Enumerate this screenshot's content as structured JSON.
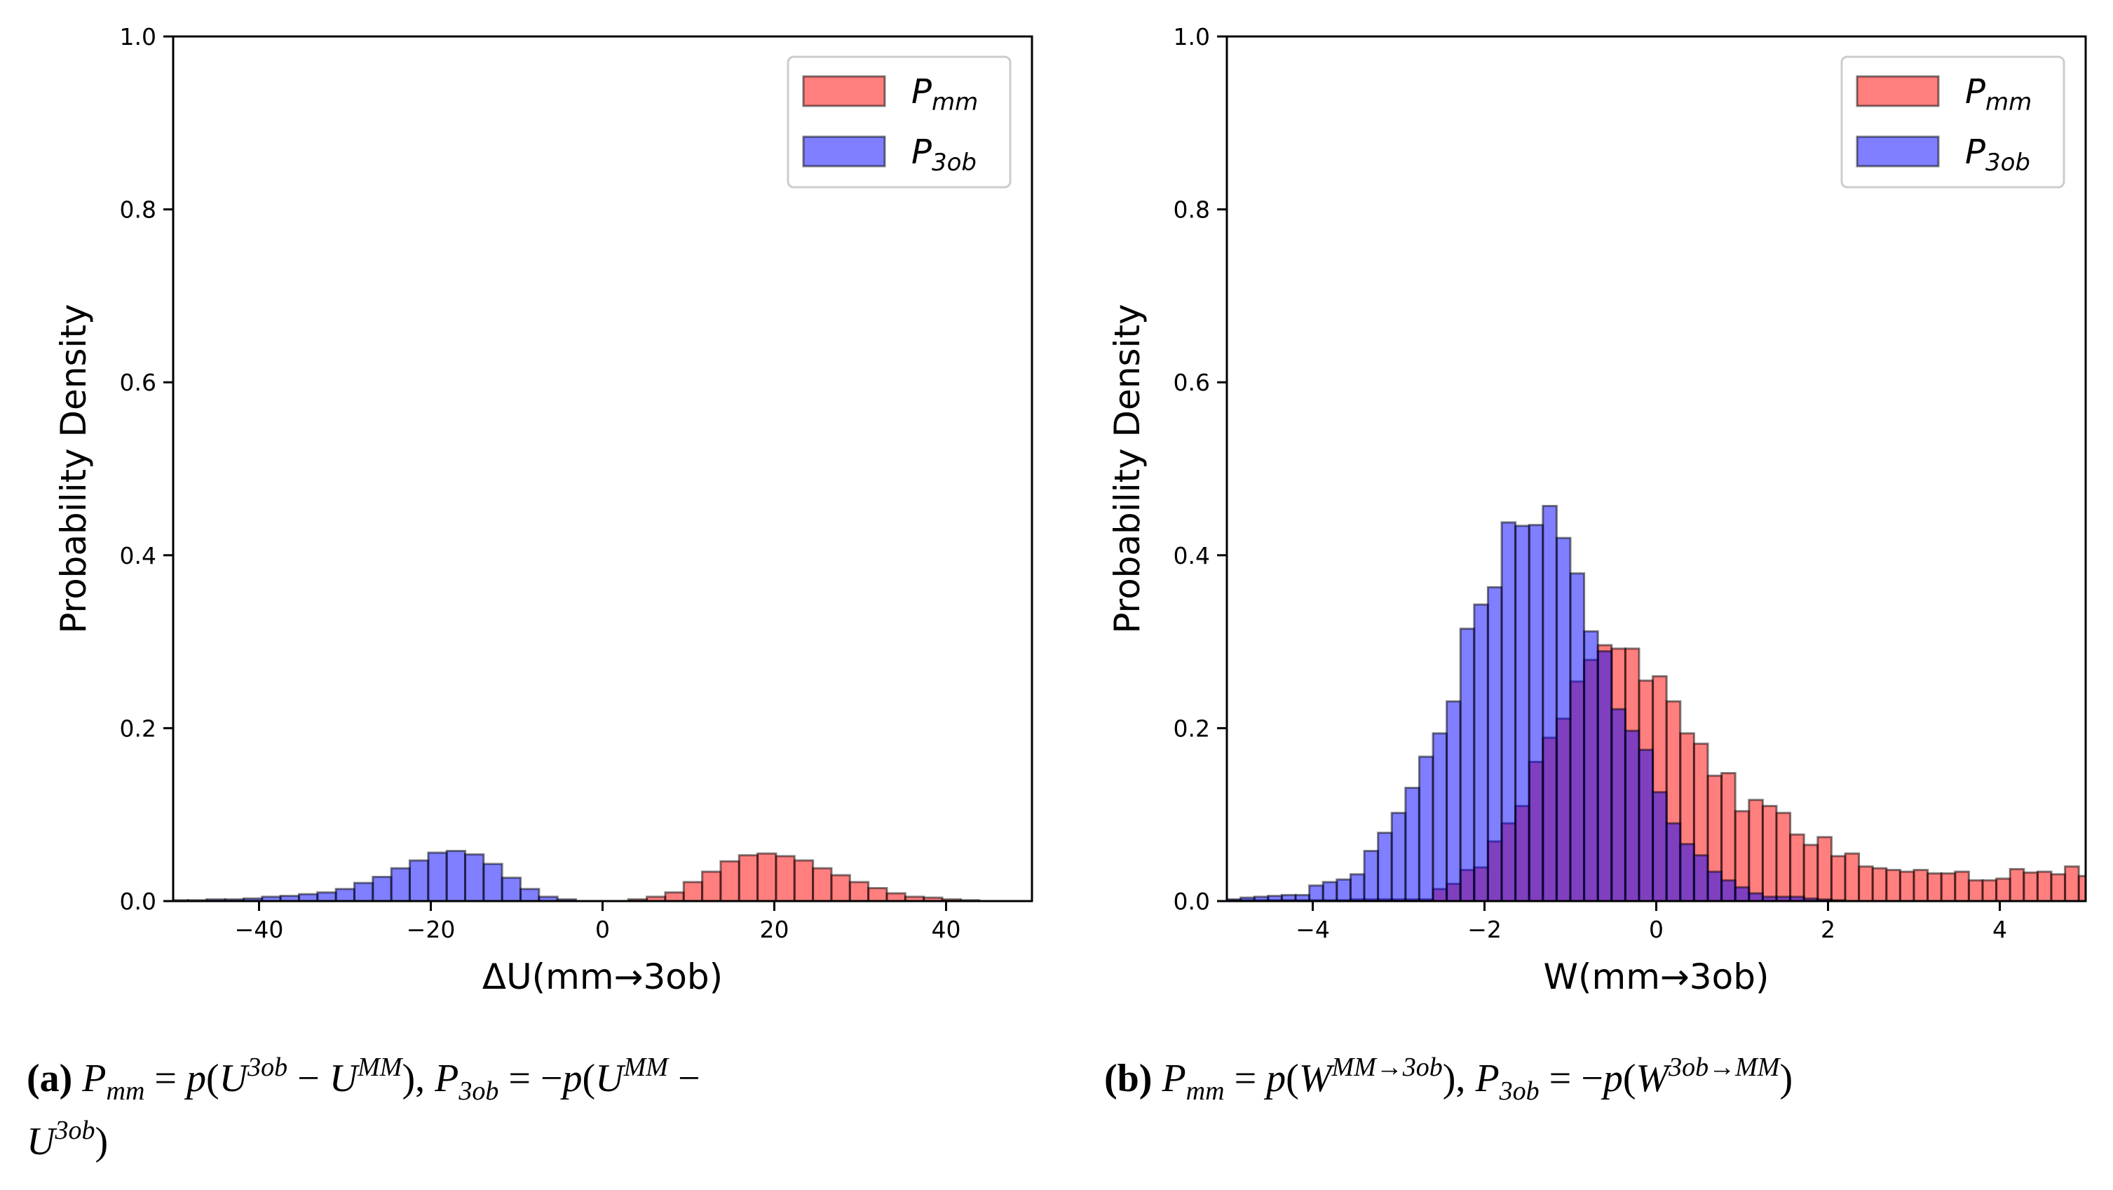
{
  "colors": {
    "pmm": "#ff0000",
    "p3ob": "#0000ff",
    "edge": "#000000"
  },
  "chart_data": [
    {
      "type": "histogram",
      "ylabel": "Probability Density",
      "xlabel": "ΔU(mm→3ob)",
      "xlim": [
        -50,
        50
      ],
      "ylim": [
        0,
        1.0
      ],
      "xticks": [
        "−40",
        "−20",
        "0",
        "20",
        "40"
      ],
      "xtick_values": [
        -40,
        -20,
        0,
        20,
        40
      ],
      "yticks": [
        "0.0",
        "0.2",
        "0.4",
        "0.6",
        "0.8",
        "1.0"
      ],
      "ytick_values": [
        0,
        0.2,
        0.4,
        0.6,
        0.8,
        1.0
      ],
      "legend": {
        "position": "top-right",
        "entries": [
          {
            "main": "P",
            "sub": "mm"
          },
          {
            "main": "P",
            "sub": "3ob"
          }
        ]
      },
      "series": [
        {
          "name": "Pmm",
          "bin_start": 3.0,
          "bin_width": 2.15,
          "values": [
            0.002,
            0.005,
            0.01,
            0.022,
            0.034,
            0.046,
            0.053,
            0.055,
            0.052,
            0.047,
            0.038,
            0.03,
            0.022,
            0.015,
            0.009,
            0.005,
            0.004,
            0.002,
            0.001
          ]
        },
        {
          "name": "P3ob",
          "bin_start": -50.4,
          "bin_width": 2.15,
          "values": [
            0.001,
            0.001,
            0.002,
            0.002,
            0.003,
            0.005,
            0.006,
            0.008,
            0.01,
            0.014,
            0.021,
            0.028,
            0.038,
            0.047,
            0.056,
            0.058,
            0.054,
            0.043,
            0.027,
            0.014,
            0.005,
            0.002
          ]
        }
      ]
    },
    {
      "type": "histogram",
      "ylabel": "Probability Density",
      "xlabel": "W(mm→3ob)",
      "xlim": [
        -5,
        5
      ],
      "ylim": [
        0,
        1.0
      ],
      "xticks": [
        "−4",
        "−2",
        "0",
        "2",
        "4"
      ],
      "xtick_values": [
        -4,
        -2,
        0,
        2,
        4
      ],
      "yticks": [
        "0.0",
        "0.2",
        "0.4",
        "0.6",
        "0.8",
        "1.0"
      ],
      "ytick_values": [
        0,
        0.2,
        0.4,
        0.6,
        0.8,
        1.0
      ],
      "legend": {
        "position": "top-right",
        "entries": [
          {
            "main": "P",
            "sub": "mm"
          },
          {
            "main": "P",
            "sub": "3ob"
          }
        ]
      },
      "series": [
        {
          "name": "Pmm",
          "bin_start": -5.0,
          "bin_width": 0.16,
          "values": [
            0.001,
            0.001,
            0.001,
            0.001,
            0.001,
            0.001,
            0.001,
            0.001,
            0.001,
            0.002,
            0.002,
            0.002,
            0.002,
            0.002,
            0.002,
            0.014,
            0.02,
            0.036,
            0.039,
            0.069,
            0.09,
            0.11,
            0.161,
            0.189,
            0.211,
            0.254,
            0.279,
            0.296,
            0.292,
            0.292,
            0.255,
            0.26,
            0.231,
            0.194,
            0.182,
            0.145,
            0.148,
            0.104,
            0.117,
            0.11,
            0.102,
            0.077,
            0.065,
            0.074,
            0.052,
            0.055,
            0.04,
            0.038,
            0.036,
            0.034,
            0.036,
            0.032,
            0.032,
            0.034,
            0.024,
            0.024,
            0.026,
            0.037,
            0.033,
            0.034,
            0.031,
            0.04,
            0.029,
            0.047
          ]
        },
        {
          "name": "P3ob",
          "bin_start": -5.0,
          "bin_width": 0.16,
          "values": [
            0.002,
            0.004,
            0.005,
            0.006,
            0.007,
            0.007,
            0.018,
            0.022,
            0.025,
            0.031,
            0.058,
            0.079,
            0.102,
            0.131,
            0.167,
            0.194,
            0.231,
            0.315,
            0.343,
            0.363,
            0.438,
            0.434,
            0.435,
            0.457,
            0.42,
            0.379,
            0.312,
            0.289,
            0.222,
            0.197,
            0.175,
            0.126,
            0.09,
            0.066,
            0.053,
            0.034,
            0.024,
            0.016,
            0.009,
            0.005,
            0.005,
            0.005,
            0.003,
            0.002,
            0.001
          ]
        }
      ]
    }
  ],
  "caption_a": {
    "label": "(a)",
    "t": [
      "P",
      "mm",
      " = ",
      "p",
      "(",
      "U",
      "3ob",
      " − ",
      "U",
      "MM",
      "), ",
      "P",
      "3ob",
      " = −",
      "p",
      "(",
      "U",
      "MM",
      " −",
      "U",
      "3ob",
      ")"
    ]
  },
  "caption_b": {
    "label": "(b)",
    "t": [
      "P",
      "mm",
      " = ",
      "p",
      "(",
      "W",
      "MM→3ob",
      "), ",
      "P",
      "3ob",
      " = −",
      "p",
      "(",
      "W",
      "3ob→MM",
      ")"
    ]
  }
}
